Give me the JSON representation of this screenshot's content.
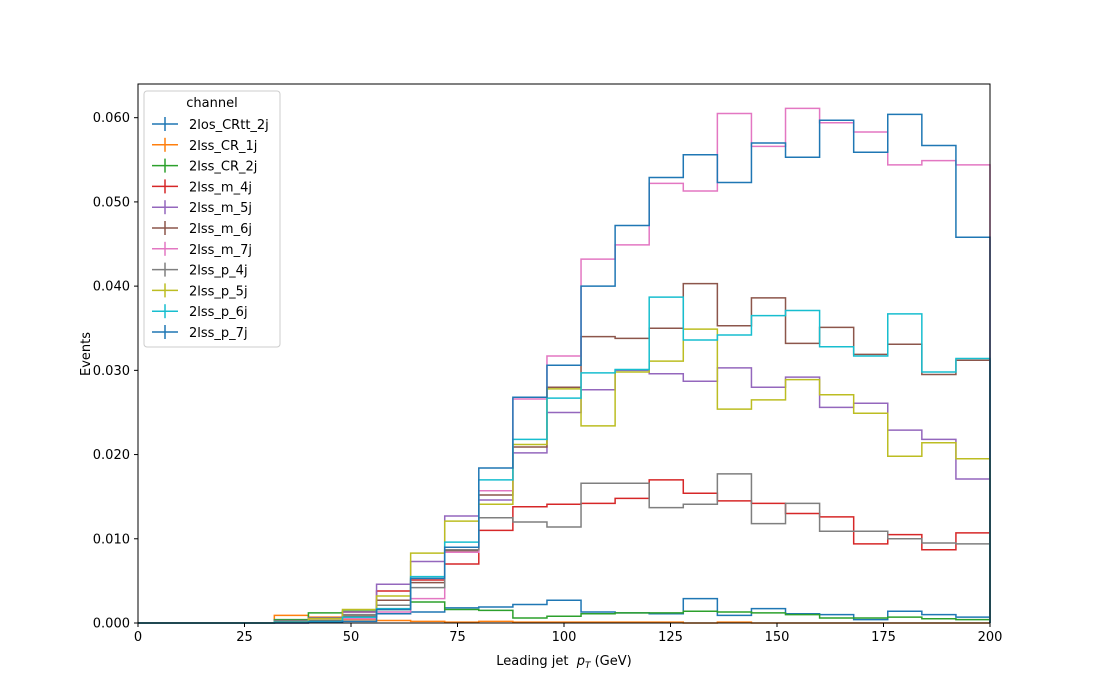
{
  "chart_data": {
    "type": "line",
    "drawstyle": "steps-histogram",
    "xlabel_main": "Leading jet  ",
    "xlabel_math": "p",
    "xlabel_sub": "T",
    "xlabel_unit": " (GeV)",
    "ylabel": "Events",
    "xlim": [
      0,
      200
    ],
    "ylim": [
      0,
      0.064
    ],
    "xticks": [
      0,
      25,
      50,
      75,
      100,
      125,
      150,
      175,
      200
    ],
    "xtick_labels": [
      "0",
      "25",
      "50",
      "75",
      "100",
      "125",
      "150",
      "175",
      "200"
    ],
    "yticks": [
      0,
      0.01,
      0.02,
      0.03,
      0.04,
      0.05,
      0.06
    ],
    "ytick_labels": [
      "0.000",
      "0.010",
      "0.020",
      "0.030",
      "0.040",
      "0.050",
      "0.060"
    ],
    "grid": false,
    "legend": {
      "title": "channel",
      "placement": "upper-left"
    },
    "bin_edges": [
      0,
      8,
      16,
      24,
      32,
      40,
      48,
      56,
      64,
      72,
      80,
      88,
      96,
      104,
      112,
      120,
      128,
      136,
      144,
      152,
      160,
      168,
      176,
      184,
      192,
      200
    ],
    "series": [
      {
        "name": "2los_CRtt_2j",
        "color": "#1f77b4",
        "values": [
          0,
          0,
          0,
          0,
          0.0002,
          0.0005,
          0.0007,
          0.0011,
          0.0013,
          0.0018,
          0.0019,
          0.0022,
          0.0027,
          0.0013,
          0.0012,
          0.0011,
          0.0029,
          0.0009,
          0.0017,
          0.0011,
          0.001,
          0.0004,
          0.0014,
          0.001,
          0.0007
        ]
      },
      {
        "name": "2lss_CR_1j",
        "color": "#ff7f0e",
        "values": [
          0,
          0,
          0,
          0,
          0.0009,
          0.0007,
          0.0004,
          0.0003,
          0.0002,
          0.0001,
          0.0002,
          0.0001,
          0.0001,
          0.0001,
          0.0001,
          0.0001,
          0,
          0.0001,
          0,
          0,
          0,
          0,
          0,
          0,
          0
        ]
      },
      {
        "name": "2lss_CR_2j",
        "color": "#2ca02c",
        "values": [
          0,
          0,
          0,
          0,
          0.0004,
          0.0012,
          0.0014,
          0.0016,
          0.0025,
          0.0016,
          0.0015,
          0.0006,
          0.0008,
          0.0011,
          0.0012,
          0.0012,
          0.0014,
          0.0013,
          0.0012,
          0.001,
          0.0006,
          0.0006,
          0.0007,
          0.0005,
          0.0004
        ]
      },
      {
        "name": "2lss_m_4j",
        "color": "#d62728",
        "values": [
          0,
          0,
          0,
          0,
          0.0002,
          0.0006,
          0.0013,
          0.0038,
          0.0051,
          0.007,
          0.011,
          0.0138,
          0.0141,
          0.0142,
          0.0148,
          0.017,
          0.0154,
          0.0145,
          0.0142,
          0.013,
          0.0126,
          0.0094,
          0.0105,
          0.0087,
          0.0107
        ]
      },
      {
        "name": "2lss_m_5j",
        "color": "#9467bd",
        "values": [
          0,
          0,
          0,
          0,
          0.0001,
          0.0006,
          0.0013,
          0.0046,
          0.0073,
          0.0127,
          0.0146,
          0.0202,
          0.025,
          0.0277,
          0.03,
          0.0296,
          0.0287,
          0.0303,
          0.028,
          0.0292,
          0.0256,
          0.0261,
          0.0229,
          0.0218,
          0.0171
        ]
      },
      {
        "name": "2lss_m_6j",
        "color": "#8c564b",
        "values": [
          0,
          0,
          0,
          0,
          0.0001,
          0.0003,
          0.0008,
          0.0027,
          0.0048,
          0.0086,
          0.0152,
          0.0209,
          0.028,
          0.034,
          0.0338,
          0.035,
          0.0403,
          0.0353,
          0.0386,
          0.0332,
          0.0351,
          0.0319,
          0.0331,
          0.0295,
          0.0312
        ]
      },
      {
        "name": "2lss_m_7j",
        "color": "#e377c2",
        "values": [
          0,
          0,
          0,
          0,
          0,
          0.0001,
          0.0005,
          0.0013,
          0.0029,
          0.0084,
          0.0157,
          0.0266,
          0.0317,
          0.0432,
          0.0449,
          0.0522,
          0.0513,
          0.0605,
          0.0566,
          0.0611,
          0.0594,
          0.0583,
          0.0544,
          0.0549,
          0.0544
        ]
      },
      {
        "name": "2lss_p_4j",
        "color": "#7f7f7f",
        "values": [
          0,
          0,
          0,
          0,
          0.0003,
          0.0006,
          0.001,
          0.0021,
          0.0042,
          0.0087,
          0.0125,
          0.012,
          0.0114,
          0.0166,
          0.0166,
          0.0137,
          0.0141,
          0.0177,
          0.0118,
          0.0142,
          0.0109,
          0.0109,
          0.01,
          0.0095,
          0.0094
        ]
      },
      {
        "name": "2lss_p_5j",
        "color": "#bcbd22",
        "values": [
          0,
          0,
          0,
          0,
          0.0001,
          0.0005,
          0.0016,
          0.0032,
          0.0083,
          0.0121,
          0.0141,
          0.0212,
          0.0278,
          0.0234,
          0.0298,
          0.0311,
          0.0349,
          0.0254,
          0.0265,
          0.0289,
          0.0271,
          0.0249,
          0.0198,
          0.0214,
          0.0195
        ]
      },
      {
        "name": "2lss_p_6j",
        "color": "#17becf",
        "values": [
          0,
          0,
          0,
          0,
          0.0001,
          0.0002,
          0.0007,
          0.0017,
          0.0055,
          0.0096,
          0.017,
          0.0218,
          0.0267,
          0.0297,
          0.0301,
          0.0387,
          0.0336,
          0.0342,
          0.0365,
          0.0371,
          0.0328,
          0.0317,
          0.0367,
          0.0298,
          0.0314
        ]
      },
      {
        "name": "2lss_p_7j",
        "color": "#1f77b4",
        "values": [
          0,
          0,
          0,
          0,
          0,
          0.0001,
          0.0002,
          0.0016,
          0.0053,
          0.009,
          0.0184,
          0.0268,
          0.0306,
          0.04,
          0.0472,
          0.0529,
          0.0556,
          0.0523,
          0.057,
          0.0553,
          0.0597,
          0.0559,
          0.0604,
          0.0567,
          0.0458
        ]
      }
    ]
  }
}
